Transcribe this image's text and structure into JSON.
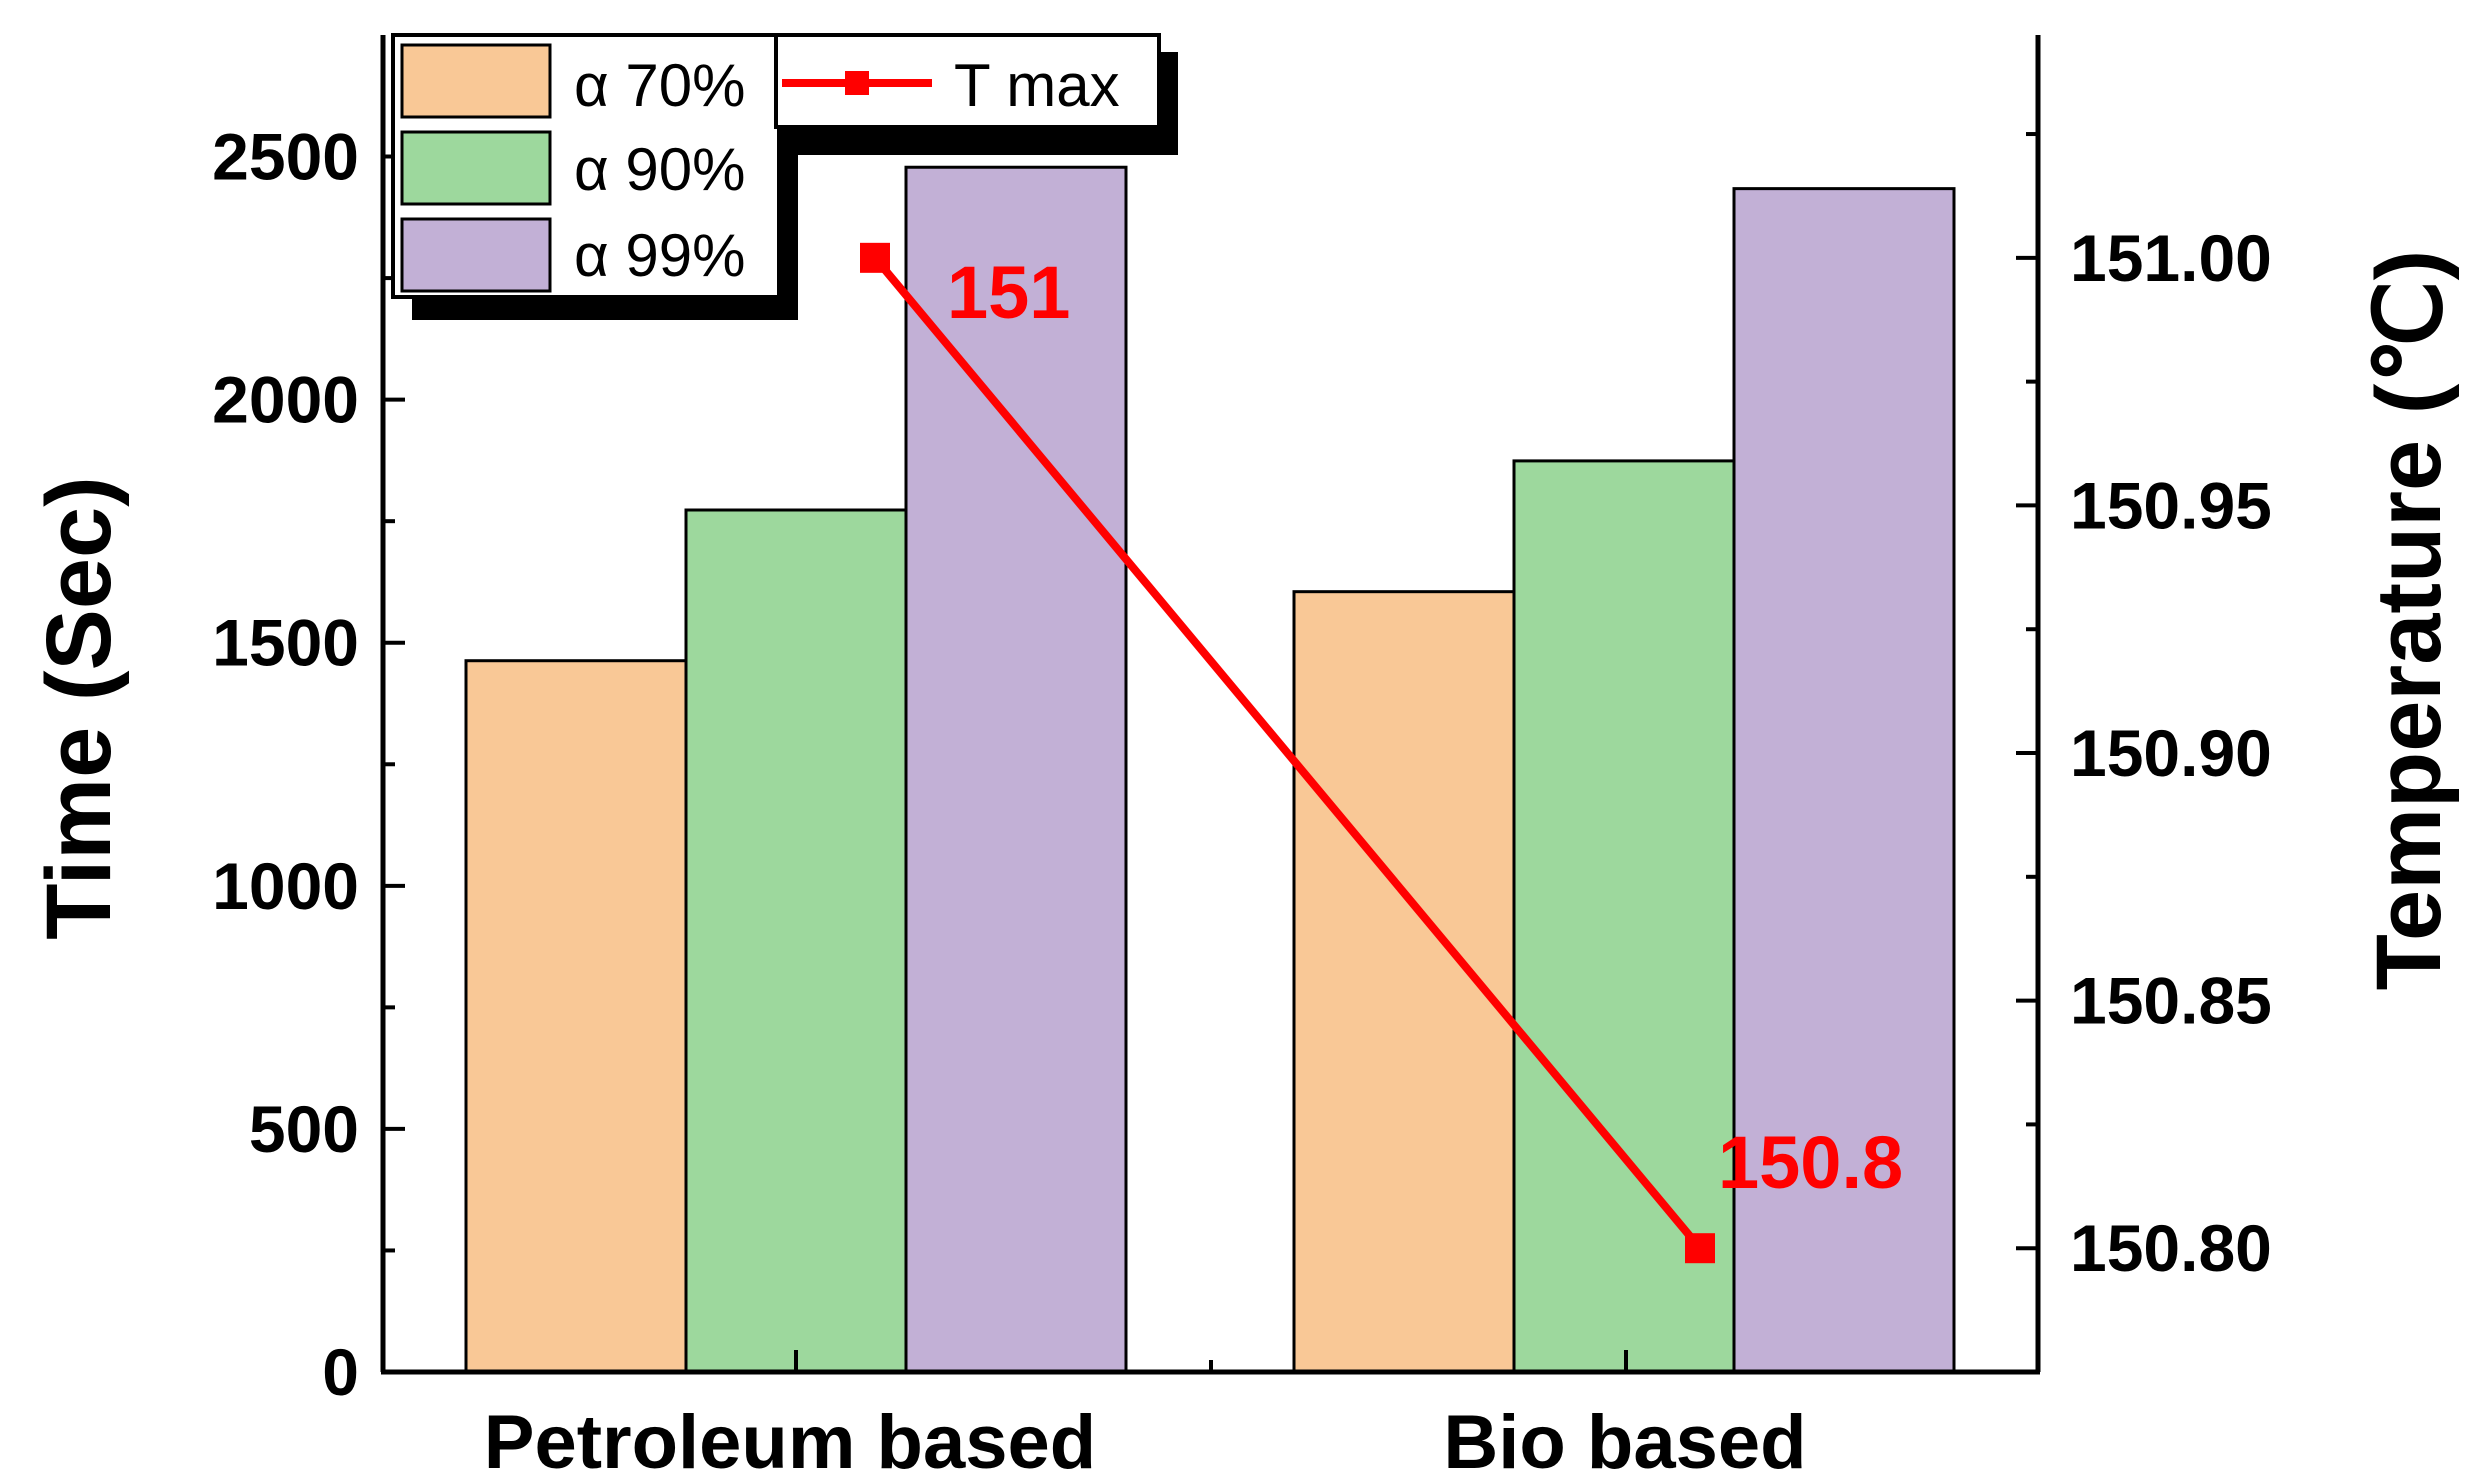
{
  "chart_data": {
    "type": "bar",
    "categories": [
      "Petroleum based",
      "Bio based"
    ],
    "series": [
      {
        "name": "α 70%",
        "axis": "left",
        "values": [
          1463,
          1605
        ],
        "color": "#F9C896"
      },
      {
        "name": "α 90%",
        "axis": "left",
        "values": [
          1773,
          1874
        ],
        "color": "#9DD89D"
      },
      {
        "name": "α 99%",
        "axis": "left",
        "values": [
          2478,
          2434
        ],
        "color": "#C2B0D6"
      }
    ],
    "line_series": {
      "name": "T max",
      "axis": "right",
      "values": [
        151.0,
        150.8
      ],
      "color": "#FF0000",
      "labels": [
        "151",
        "150.8"
      ]
    },
    "ylabel": "Time (Sec)",
    "ylabel_right": "Temperature (℃)",
    "ylim": [
      0,
      2750
    ],
    "yticks": [
      "0",
      "500",
      "1000",
      "1500",
      "2000",
      "2500"
    ],
    "ylim_right": [
      150.775,
      151.045
    ],
    "yticks_right": [
      "150.80",
      "150.85",
      "150.90",
      "150.95",
      "151.00"
    ],
    "legend_position": "top-left"
  }
}
